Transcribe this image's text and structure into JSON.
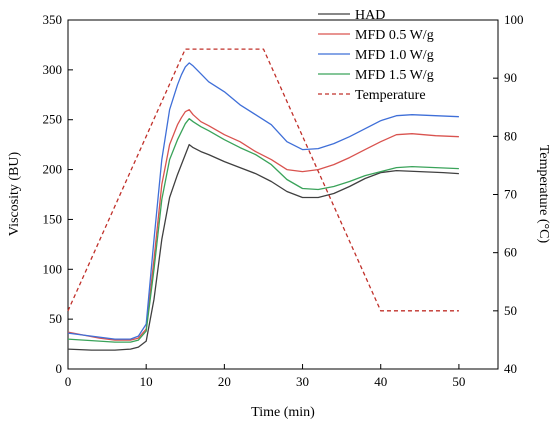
{
  "chart_data": {
    "type": "line",
    "xlabel": "Time (min)",
    "ylabel": "Viscosity (BU)",
    "y2label": "Temperature (°C)",
    "xlim": [
      0,
      55
    ],
    "ylim": [
      0,
      350
    ],
    "y2lim": [
      40,
      100
    ],
    "xticks": [
      0,
      10,
      20,
      30,
      40,
      50
    ],
    "yticks": [
      0,
      50,
      100,
      150,
      200,
      250,
      300,
      350
    ],
    "y2ticks": [
      40,
      50,
      60,
      70,
      80,
      90,
      100
    ],
    "grid": false,
    "legend_position": "top-right",
    "series": [
      {
        "name": "HAD",
        "axis": "left",
        "color": "#404040",
        "dash": "solid",
        "points": [
          [
            0,
            20
          ],
          [
            3,
            19
          ],
          [
            6,
            19
          ],
          [
            8,
            20
          ],
          [
            9,
            22
          ],
          [
            10,
            28
          ],
          [
            11,
            70
          ],
          [
            12,
            130
          ],
          [
            13,
            172
          ],
          [
            14,
            195
          ],
          [
            14.5,
            205
          ],
          [
            15,
            215
          ],
          [
            15.5,
            225
          ],
          [
            16,
            222
          ],
          [
            17,
            218
          ],
          [
            18,
            215
          ],
          [
            20,
            208
          ],
          [
            22,
            202
          ],
          [
            24,
            196
          ],
          [
            26,
            188
          ],
          [
            28,
            178
          ],
          [
            30,
            172
          ],
          [
            32,
            172
          ],
          [
            34,
            176
          ],
          [
            36,
            183
          ],
          [
            38,
            191
          ],
          [
            40,
            197
          ],
          [
            42,
            199
          ],
          [
            45,
            198
          ],
          [
            48,
            197
          ],
          [
            50,
            196
          ]
        ]
      },
      {
        "name": "MFD 0.5 W/g",
        "axis": "left",
        "color": "#d9534f",
        "dash": "solid",
        "points": [
          [
            0,
            37
          ],
          [
            2,
            34
          ],
          [
            4,
            31
          ],
          [
            6,
            29
          ],
          [
            8,
            29
          ],
          [
            9,
            31
          ],
          [
            10,
            40
          ],
          [
            11,
            110
          ],
          [
            12,
            185
          ],
          [
            13,
            225
          ],
          [
            14,
            245
          ],
          [
            14.5,
            252
          ],
          [
            15,
            258
          ],
          [
            15.5,
            260
          ],
          [
            16,
            255
          ],
          [
            17,
            248
          ],
          [
            18,
            244
          ],
          [
            20,
            235
          ],
          [
            22,
            228
          ],
          [
            24,
            218
          ],
          [
            26,
            210
          ],
          [
            28,
            200
          ],
          [
            30,
            198
          ],
          [
            32,
            200
          ],
          [
            34,
            205
          ],
          [
            36,
            212
          ],
          [
            38,
            220
          ],
          [
            40,
            228
          ],
          [
            42,
            235
          ],
          [
            44,
            236
          ],
          [
            47,
            234
          ],
          [
            50,
            233
          ]
        ]
      },
      {
        "name": "MFD 1.0 W/g",
        "axis": "left",
        "color": "#3f6fd8",
        "dash": "solid",
        "points": [
          [
            0,
            36
          ],
          [
            2,
            34
          ],
          [
            4,
            32
          ],
          [
            6,
            30
          ],
          [
            8,
            30
          ],
          [
            9,
            33
          ],
          [
            10,
            45
          ],
          [
            11,
            130
          ],
          [
            12,
            210
          ],
          [
            13,
            260
          ],
          [
            14,
            285
          ],
          [
            14.5,
            295
          ],
          [
            15,
            303
          ],
          [
            15.5,
            307
          ],
          [
            16,
            304
          ],
          [
            17,
            296
          ],
          [
            18,
            288
          ],
          [
            20,
            278
          ],
          [
            22,
            265
          ],
          [
            24,
            255
          ],
          [
            26,
            245
          ],
          [
            28,
            228
          ],
          [
            30,
            220
          ],
          [
            32,
            221
          ],
          [
            34,
            226
          ],
          [
            36,
            233
          ],
          [
            38,
            241
          ],
          [
            40,
            249
          ],
          [
            42,
            254
          ],
          [
            44,
            255
          ],
          [
            47,
            254
          ],
          [
            50,
            253
          ]
        ]
      },
      {
        "name": "MFD 1.5 W/g",
        "axis": "left",
        "color": "#3aa35a",
        "dash": "solid",
        "points": [
          [
            0,
            30
          ],
          [
            2,
            29
          ],
          [
            4,
            28
          ],
          [
            6,
            27
          ],
          [
            8,
            27
          ],
          [
            9,
            29
          ],
          [
            10,
            38
          ],
          [
            11,
            100
          ],
          [
            12,
            170
          ],
          [
            13,
            210
          ],
          [
            14,
            230
          ],
          [
            14.5,
            238
          ],
          [
            15,
            246
          ],
          [
            15.5,
            251
          ],
          [
            16,
            248
          ],
          [
            17,
            243
          ],
          [
            18,
            239
          ],
          [
            20,
            230
          ],
          [
            22,
            222
          ],
          [
            24,
            215
          ],
          [
            26,
            205
          ],
          [
            28,
            190
          ],
          [
            30,
            181
          ],
          [
            32,
            180
          ],
          [
            34,
            183
          ],
          [
            36,
            188
          ],
          [
            38,
            194
          ],
          [
            40,
            198
          ],
          [
            42,
            202
          ],
          [
            44,
            203
          ],
          [
            47,
            202
          ],
          [
            50,
            201
          ]
        ]
      },
      {
        "name": "Temperature",
        "axis": "right",
        "color": "#c0302a",
        "dash": "dashed",
        "points": [
          [
            0,
            50
          ],
          [
            15,
            95
          ],
          [
            25,
            95
          ],
          [
            40,
            50
          ],
          [
            50,
            50
          ]
        ]
      }
    ]
  }
}
